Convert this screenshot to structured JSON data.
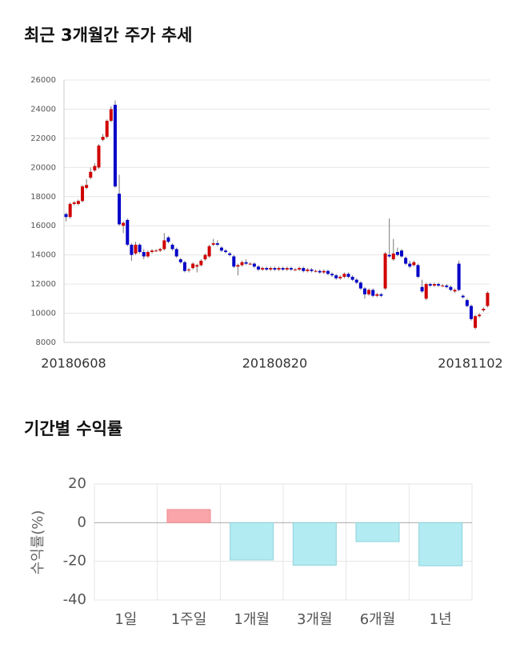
{
  "chart_data": [
    {
      "type": "candlestick",
      "title": "최근 3개월간 주가 추세",
      "categories": [
        "20180608",
        null,
        null,
        null,
        null,
        null,
        null,
        null,
        null,
        null,
        null,
        null,
        null,
        null,
        null,
        null,
        null,
        null,
        null,
        null,
        null,
        null,
        null,
        null,
        null,
        null,
        null,
        null,
        null,
        null,
        null,
        null,
        null,
        null,
        null,
        null,
        null,
        null,
        null,
        null,
        null,
        null,
        null,
        null,
        null,
        null,
        null,
        null,
        null,
        null,
        null,
        "20180820",
        null,
        null,
        null,
        null,
        null,
        null,
        null,
        null,
        null,
        null,
        null,
        null,
        null,
        null,
        null,
        null,
        null,
        null,
        null,
        null,
        null,
        null,
        null,
        null,
        null,
        null,
        null,
        null,
        null,
        null,
        null,
        null,
        null,
        null,
        null,
        null,
        null,
        null,
        null,
        null,
        null,
        null,
        null,
        null,
        null,
        null,
        null,
        null,
        null,
        null,
        null,
        "20181102"
      ],
      "open": [
        16800,
        16600,
        17500,
        17500,
        17700,
        18600,
        19300,
        19800,
        20000,
        21900,
        22100,
        23200,
        24300,
        18200,
        16000,
        16400,
        14700,
        14100,
        14700,
        14200,
        13900,
        14200,
        14300,
        14300,
        14400,
        15200,
        14700,
        14400,
        13700,
        13500,
        13000,
        13100,
        13200,
        13300,
        13700,
        13900,
        14700,
        14800,
        14500,
        14300,
        14100,
        13900,
        13200,
        13300,
        13500,
        13400,
        13400,
        13200,
        13000,
        13100,
        13000,
        13100,
        13000,
        13100,
        13000,
        13100,
        13000,
        13000,
        13100,
        12900,
        13000,
        12900,
        12900,
        12800,
        12900,
        12700,
        12600,
        12400,
        12500,
        12700,
        12500,
        12300,
        12100,
        11700,
        11300,
        11600,
        11200,
        11300,
        11700,
        14000,
        13700,
        14200,
        14300,
        13800,
        13400,
        13300,
        13300,
        11800,
        11000,
        12000,
        11900,
        12000,
        11900,
        11900,
        11800,
        11500,
        13400,
        11200,
        10900,
        10500,
        9000,
        9800,
        10200,
        10500
      ],
      "high": [
        16900,
        17600,
        17700,
        17800,
        18800,
        19200,
        20000,
        20300,
        21600,
        22300,
        23300,
        24200,
        24600,
        19500,
        16300,
        16500,
        14800,
        14900,
        14800,
        14400,
        14300,
        14400,
        14400,
        14500,
        15500,
        15300,
        14800,
        14500,
        13800,
        13600,
        13100,
        13500,
        13400,
        13700,
        14100,
        14700,
        15100,
        15000,
        14600,
        14400,
        14200,
        14000,
        13400,
        13600,
        13700,
        13500,
        13500,
        13300,
        13200,
        13200,
        13200,
        13200,
        13200,
        13200,
        13200,
        13200,
        13100,
        13200,
        13200,
        13100,
        13100,
        13000,
        13000,
        13000,
        13000,
        12800,
        12700,
        12600,
        12800,
        12800,
        12600,
        12400,
        12200,
        11800,
        11700,
        11700,
        11400,
        11400,
        14200,
        16500,
        15100,
        14500,
        14400,
        13900,
        13600,
        13600,
        13400,
        12300,
        12100,
        12100,
        12100,
        12100,
        12000,
        12000,
        11900,
        11700,
        13600,
        11300,
        11000,
        10600,
        9900,
        10000,
        10400,
        11500
      ],
      "low": [
        16300,
        16500,
        17400,
        17400,
        17600,
        18500,
        19200,
        19700,
        19900,
        21800,
        22000,
        23100,
        18600,
        16000,
        15500,
        14600,
        13600,
        14000,
        14100,
        13700,
        13800,
        14100,
        14200,
        14200,
        14300,
        14800,
        14300,
        13800,
        13400,
        12800,
        12800,
        13000,
        12800,
        13200,
        13600,
        13800,
        14600,
        14600,
        14200,
        14100,
        13900,
        13100,
        12600,
        13200,
        13300,
        13300,
        13100,
        12900,
        12900,
        12900,
        12900,
        12900,
        12900,
        12900,
        12900,
        12900,
        12900,
        12900,
        12800,
        12800,
        12800,
        12800,
        12700,
        12700,
        12600,
        12500,
        12300,
        12300,
        12400,
        12400,
        12200,
        12000,
        11600,
        11000,
        11200,
        11100,
        11100,
        11100,
        11600,
        13800,
        13600,
        13900,
        13800,
        13300,
        13100,
        13200,
        12400,
        11400,
        10900,
        11800,
        11800,
        11800,
        11800,
        11700,
        11500,
        11400,
        11500,
        11000,
        10400,
        9500,
        8900,
        9700,
        10100,
        10400
      ],
      "close": [
        16600,
        17500,
        17600,
        17700,
        18700,
        18800,
        19700,
        20100,
        21500,
        22100,
        23200,
        24000,
        18700,
        16100,
        16200,
        14700,
        14000,
        14700,
        14200,
        13900,
        14200,
        14300,
        14300,
        14400,
        15000,
        14900,
        14400,
        13900,
        13500,
        12900,
        13000,
        13400,
        13300,
        13600,
        14000,
        14600,
        14800,
        14700,
        14300,
        14200,
        14000,
        13200,
        13300,
        13500,
        13400,
        13400,
        13200,
        13000,
        13100,
        13000,
        13100,
        13000,
        13100,
        13000,
        13100,
        13000,
        13000,
        13100,
        12900,
        13000,
        12900,
        12900,
        12800,
        12900,
        12700,
        12600,
        12400,
        12500,
        12700,
        12500,
        12300,
        12100,
        11700,
        11300,
        11600,
        11200,
        11300,
        11200,
        14100,
        13900,
        14100,
        14000,
        13900,
        13400,
        13200,
        13500,
        12500,
        11500,
        12000,
        11900,
        12000,
        11900,
        11900,
        11800,
        11600,
        11600,
        11600,
        11100,
        10500,
        9600,
        9800,
        9900,
        10300,
        11400
      ],
      "up_color": "#d00000",
      "down_color": "#0000c8",
      "ylim": [
        8000,
        26000
      ],
      "yticks": [
        8000,
        10000,
        12000,
        14000,
        16000,
        18000,
        20000,
        22000,
        24000,
        26000
      ],
      "grid": true
    },
    {
      "type": "bar",
      "title": "기간별 수익률",
      "y_label": "수익률(%)",
      "categories": [
        "1일",
        "1주일",
        "1개월",
        "3개월",
        "6개월",
        "1년"
      ],
      "values": [
        0,
        6.8,
        -19.3,
        -22,
        -9.8,
        -22.3
      ],
      "positive_color": "#f9a5aa",
      "negative_color": "#b2ebf2",
      "ylim": [
        -40,
        20
      ],
      "yticks": [
        -40,
        -20,
        0,
        20
      ],
      "grid": true
    }
  ]
}
